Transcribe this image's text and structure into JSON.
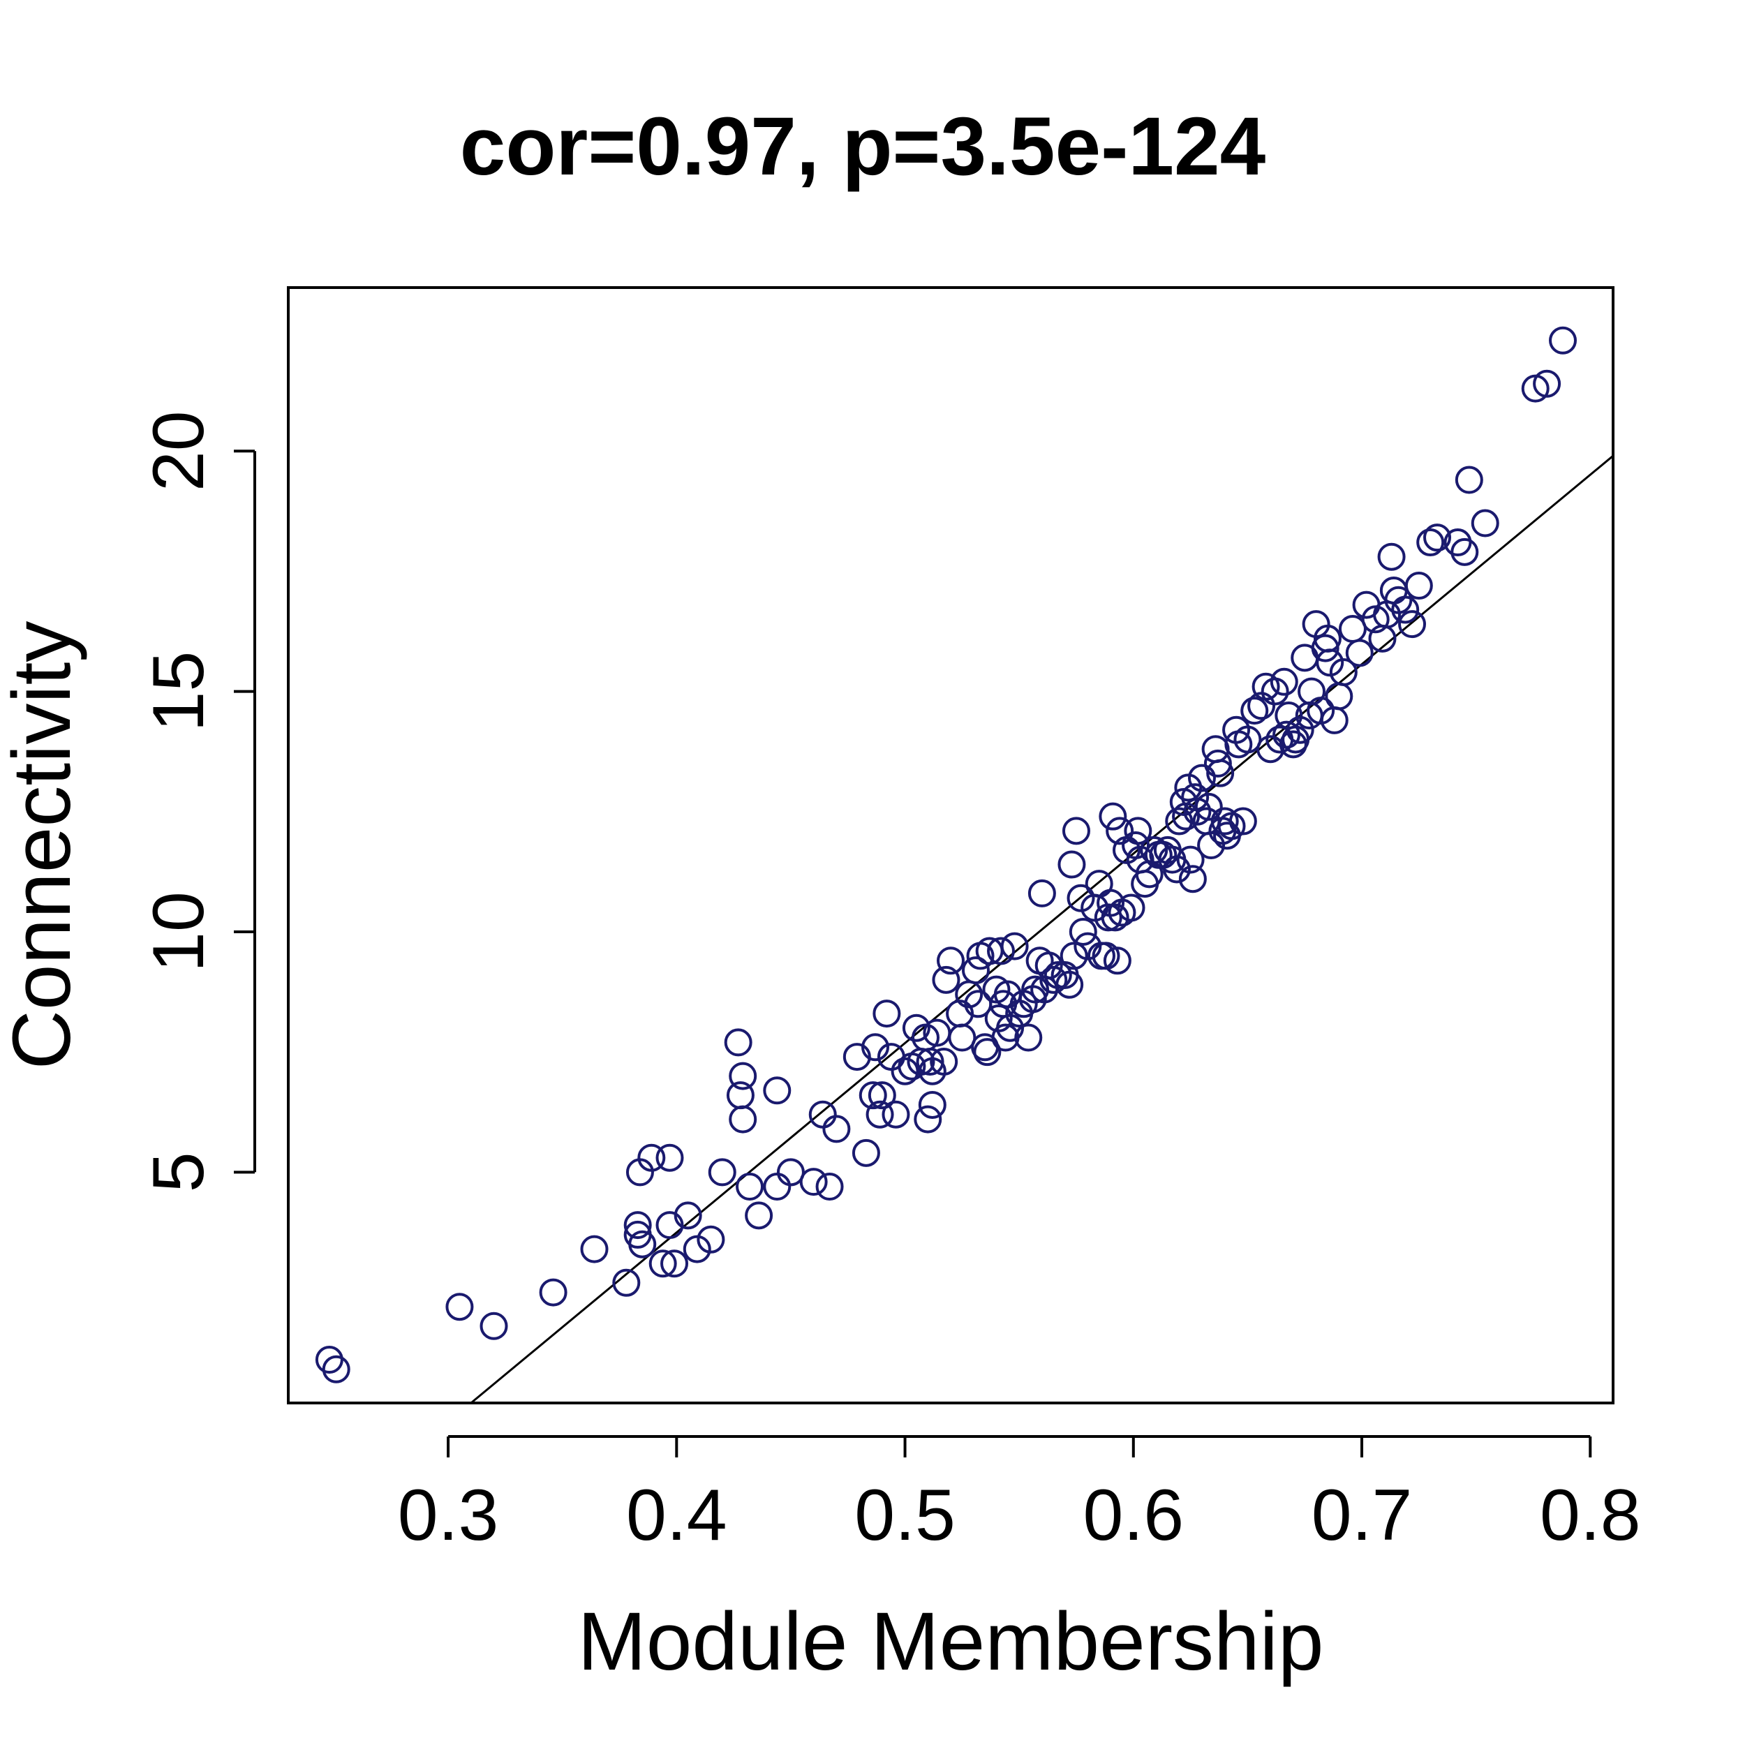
{
  "chart_data": {
    "type": "scatter",
    "title": "cor=0.97, p=3.5e-124",
    "xlabel": "Module Membership",
    "ylabel": "Connectivity",
    "xlim": [
      0.23,
      0.81
    ],
    "ylim": [
      0.2,
      23.4
    ],
    "xticks": [
      0.3,
      0.4,
      0.5,
      0.6,
      0.7,
      0.8
    ],
    "xtick_labels": [
      "0.3",
      "0.4",
      "0.5",
      "0.6",
      "0.7",
      "0.8"
    ],
    "yticks": [
      5,
      10,
      15,
      20
    ],
    "ytick_labels": [
      "5",
      "10",
      "15",
      "20"
    ],
    "grid": false,
    "point_color": "#1a1a6e",
    "line_color": "#000000",
    "fit_line": {
      "x": [
        0.31,
        0.81
      ],
      "y": [
        0.2,
        19.9
      ]
    },
    "points": [
      [
        0.248,
        1.1
      ],
      [
        0.251,
        0.9
      ],
      [
        0.305,
        2.2
      ],
      [
        0.32,
        1.8
      ],
      [
        0.346,
        2.5
      ],
      [
        0.364,
        3.4
      ],
      [
        0.378,
        2.7
      ],
      [
        0.383,
        3.9
      ],
      [
        0.383,
        3.7
      ],
      [
        0.385,
        3.5
      ],
      [
        0.384,
        5.0
      ],
      [
        0.389,
        5.3
      ],
      [
        0.397,
        5.3
      ],
      [
        0.394,
        3.1
      ],
      [
        0.397,
        3.9
      ],
      [
        0.399,
        3.1
      ],
      [
        0.405,
        4.1
      ],
      [
        0.409,
        3.4
      ],
      [
        0.415,
        3.6
      ],
      [
        0.42,
        5.0
      ],
      [
        0.427,
        7.7
      ],
      [
        0.428,
        6.6
      ],
      [
        0.429,
        7.0
      ],
      [
        0.429,
        6.1
      ],
      [
        0.432,
        4.7
      ],
      [
        0.436,
        4.1
      ],
      [
        0.444,
        6.7
      ],
      [
        0.444,
        4.7
      ],
      [
        0.45,
        5.0
      ],
      [
        0.46,
        4.8
      ],
      [
        0.464,
        6.2
      ],
      [
        0.467,
        4.7
      ],
      [
        0.47,
        5.9
      ],
      [
        0.479,
        7.4
      ],
      [
        0.483,
        5.4
      ],
      [
        0.486,
        6.6
      ],
      [
        0.487,
        7.6
      ],
      [
        0.489,
        6.2
      ],
      [
        0.49,
        6.6
      ],
      [
        0.492,
        8.3
      ],
      [
        0.494,
        7.4
      ],
      [
        0.496,
        6.2
      ],
      [
        0.5,
        7.1
      ],
      [
        0.503,
        7.2
      ],
      [
        0.505,
        8.0
      ],
      [
        0.507,
        7.3
      ],
      [
        0.509,
        7.8
      ],
      [
        0.51,
        6.1
      ],
      [
        0.511,
        7.3
      ],
      [
        0.512,
        6.4
      ],
      [
        0.512,
        7.1
      ],
      [
        0.514,
        7.9
      ],
      [
        0.517,
        7.3
      ],
      [
        0.518,
        9.0
      ],
      [
        0.52,
        9.4
      ],
      [
        0.524,
        8.3
      ],
      [
        0.525,
        7.8
      ],
      [
        0.528,
        8.7
      ],
      [
        0.531,
        9.2
      ],
      [
        0.532,
        8.5
      ],
      [
        0.533,
        9.5
      ],
      [
        0.535,
        7.6
      ],
      [
        0.536,
        7.5
      ],
      [
        0.537,
        9.6
      ],
      [
        0.54,
        8.8
      ],
      [
        0.541,
        8.2
      ],
      [
        0.542,
        9.6
      ],
      [
        0.543,
        8.5
      ],
      [
        0.544,
        7.8
      ],
      [
        0.545,
        8.7
      ],
      [
        0.546,
        8.0
      ],
      [
        0.548,
        9.7
      ],
      [
        0.55,
        8.3
      ],
      [
        0.552,
        8.5
      ],
      [
        0.554,
        7.8
      ],
      [
        0.556,
        8.6
      ],
      [
        0.557,
        8.8
      ],
      [
        0.559,
        9.4
      ],
      [
        0.56,
        10.8
      ],
      [
        0.561,
        8.8
      ],
      [
        0.563,
        9.3
      ],
      [
        0.565,
        9.0
      ],
      [
        0.567,
        9.1
      ],
      [
        0.57,
        9.1
      ],
      [
        0.572,
        8.9
      ],
      [
        0.573,
        11.4
      ],
      [
        0.574,
        9.5
      ],
      [
        0.575,
        12.1
      ],
      [
        0.577,
        10.7
      ],
      [
        0.578,
        10.0
      ],
      [
        0.58,
        9.7
      ],
      [
        0.583,
        10.5
      ],
      [
        0.585,
        11.0
      ],
      [
        0.586,
        9.5
      ],
      [
        0.588,
        9.5
      ],
      [
        0.589,
        10.3
      ],
      [
        0.59,
        10.6
      ],
      [
        0.591,
        12.4
      ],
      [
        0.592,
        10.3
      ],
      [
        0.593,
        9.4
      ],
      [
        0.594,
        12.1
      ],
      [
        0.595,
        10.4
      ],
      [
        0.597,
        11.7
      ],
      [
        0.599,
        10.5
      ],
      [
        0.601,
        11.8
      ],
      [
        0.602,
        12.1
      ],
      [
        0.603,
        11.5
      ],
      [
        0.605,
        11.0
      ],
      [
        0.607,
        11.2
      ],
      [
        0.609,
        11.7
      ],
      [
        0.611,
        11.6
      ],
      [
        0.613,
        11.6
      ],
      [
        0.615,
        11.7
      ],
      [
        0.617,
        11.5
      ],
      [
        0.619,
        11.3
      ],
      [
        0.62,
        12.3
      ],
      [
        0.622,
        12.7
      ],
      [
        0.623,
        12.4
      ],
      [
        0.624,
        13.0
      ],
      [
        0.625,
        11.5
      ],
      [
        0.626,
        11.1
      ],
      [
        0.627,
        12.8
      ],
      [
        0.628,
        12.5
      ],
      [
        0.63,
        13.2
      ],
      [
        0.632,
        12.3
      ],
      [
        0.633,
        12.6
      ],
      [
        0.634,
        11.8
      ],
      [
        0.636,
        13.8
      ],
      [
        0.637,
        13.5
      ],
      [
        0.638,
        13.3
      ],
      [
        0.639,
        12.1
      ],
      [
        0.64,
        12.3
      ],
      [
        0.641,
        12.0
      ],
      [
        0.643,
        12.2
      ],
      [
        0.645,
        14.2
      ],
      [
        0.646,
        13.9
      ],
      [
        0.648,
        12.3
      ],
      [
        0.65,
        14.0
      ],
      [
        0.653,
        14.6
      ],
      [
        0.656,
        14.7
      ],
      [
        0.658,
        15.1
      ],
      [
        0.66,
        13.8
      ],
      [
        0.662,
        15.0
      ],
      [
        0.664,
        14.0
      ],
      [
        0.666,
        15.2
      ],
      [
        0.667,
        14.1
      ],
      [
        0.668,
        14.5
      ],
      [
        0.67,
        13.9
      ],
      [
        0.671,
        14.0
      ],
      [
        0.673,
        14.2
      ],
      [
        0.675,
        15.7
      ],
      [
        0.677,
        14.5
      ],
      [
        0.678,
        15.0
      ],
      [
        0.68,
        16.4
      ],
      [
        0.682,
        14.6
      ],
      [
        0.684,
        15.9
      ],
      [
        0.685,
        16.1
      ],
      [
        0.686,
        15.6
      ],
      [
        0.688,
        14.4
      ],
      [
        0.69,
        14.9
      ],
      [
        0.692,
        15.4
      ],
      [
        0.696,
        16.3
      ],
      [
        0.699,
        15.8
      ],
      [
        0.702,
        16.8
      ],
      [
        0.706,
        16.5
      ],
      [
        0.709,
        16.1
      ],
      [
        0.711,
        16.6
      ],
      [
        0.713,
        17.8
      ],
      [
        0.714,
        17.1
      ],
      [
        0.716,
        16.9
      ],
      [
        0.719,
        16.7
      ],
      [
        0.722,
        16.4
      ],
      [
        0.725,
        17.2
      ],
      [
        0.73,
        18.1
      ],
      [
        0.733,
        18.2
      ],
      [
        0.742,
        18.1
      ],
      [
        0.745,
        17.9
      ],
      [
        0.747,
        19.4
      ],
      [
        0.754,
        18.5
      ],
      [
        0.776,
        21.3
      ],
      [
        0.781,
        21.4
      ],
      [
        0.788,
        22.3
      ]
    ]
  }
}
